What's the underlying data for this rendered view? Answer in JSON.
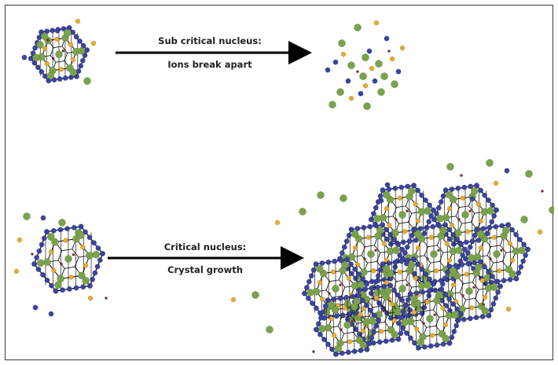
{
  "diagram": {
    "top_label_line1": "Sub critical nucleus:",
    "top_label_line2": "Ions break apart",
    "bottom_label_line1": "Critical nucleus:",
    "bottom_label_line2": "Crystal growth"
  },
  "colors": {
    "green_atom": "#7aa24b",
    "blue_atom": "#3a44a0",
    "yellow_atom": "#e7ad2d",
    "red_atom": "#8a2a2a",
    "bond": "#1a1a1a",
    "arrow": "#000000"
  }
}
